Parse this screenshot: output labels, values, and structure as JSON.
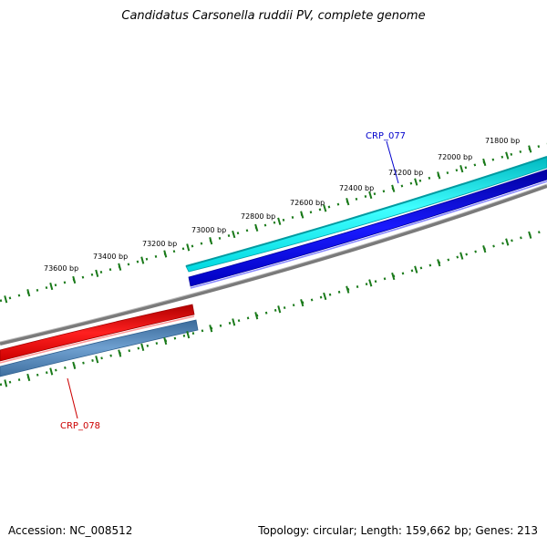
{
  "title": "Candidatus Carsonella ruddii PV, complete genome",
  "footer": {
    "accession": "Accession: NC_008512",
    "summary": "Topology: circular; Length: 159,662 bp; Genes: 213"
  },
  "ruler": {
    "unit": "bp",
    "labels": [
      "73600 bp",
      "73400 bp",
      "73200 bp",
      "73000 bp",
      "72800 bp",
      "72600 bp",
      "72400 bp",
      "72200 bp",
      "72000 bp",
      "71800 bp"
    ],
    "tick_color": "#1a7a1a"
  },
  "genes": [
    {
      "id": "CRP_077",
      "label": "CRP_077",
      "strand": "forward",
      "label_color": "#0000cc"
    },
    {
      "id": "CRP_078",
      "label": "CRP_078",
      "strand": "reverse",
      "label_color": "#cc0000"
    }
  ],
  "tracks": {
    "forward_gene_color": "#00e0e8",
    "forward_cds_color": "#0000dd",
    "backbone_color": "#808080",
    "reverse_gene_color": "#ee0000",
    "reverse_cds_color": "#4a7fb0"
  }
}
